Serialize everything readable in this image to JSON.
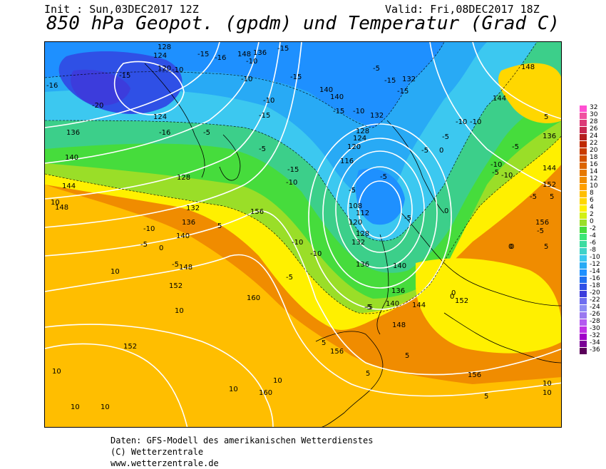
{
  "header": {
    "init": "Init : Sun,03DEC2017 12Z",
    "valid": "Valid: Fri,08DEC2017 18Z",
    "title": "850 hPa Geopot. (gpdm) und Temperatur (Grad C)"
  },
  "colors": {
    "t_m36": "#5a005a",
    "t_m34": "#7a0096",
    "t_m32": "#a000c8",
    "t_m30": "#c032e6",
    "t_m28": "#b45af0",
    "t_m26": "#9a78f0",
    "t_m24": "#8c8cf5",
    "t_m22": "#6e6ef0",
    "t_m20": "#3c3cdc",
    "t_m18": "#2f50e6",
    "t_m16": "#2070f0",
    "t_m14": "#1e90ff",
    "t_m12": "#28aaf5",
    "t_m10": "#3cc8f0",
    "t_m8": "#40d2c8",
    "t_m6": "#3cdca0",
    "t_m4": "#3ce678",
    "t_m2": "#46dc3c",
    "t_0": "#9ade28",
    "t_2": "#d2f014",
    "t_4": "#fff000",
    "t_6": "#ffd700",
    "t_8": "#ffbe00",
    "t_10": "#ffa000",
    "t_12": "#f08c00",
    "t_14": "#e67800",
    "t_16": "#dc6400",
    "t_18": "#d25000",
    "t_20": "#c83c00",
    "t_22": "#be2800",
    "t_24": "#b41e1e",
    "t_26": "#c82850",
    "t_28": "#dc3c78",
    "t_30": "#f050a0",
    "t_32": "#ff50d2"
  },
  "scale": [
    {
      "label": "32",
      "color": "#ff50d2"
    },
    {
      "label": "30",
      "color": "#f050a0"
    },
    {
      "label": "28",
      "color": "#dc3c78"
    },
    {
      "label": "26",
      "color": "#c82850"
    },
    {
      "label": "24",
      "color": "#b41e1e"
    },
    {
      "label": "22",
      "color": "#be2800"
    },
    {
      "label": "20",
      "color": "#c83c00"
    },
    {
      "label": "18",
      "color": "#d25000"
    },
    {
      "label": "16",
      "color": "#dc6400"
    },
    {
      "label": "14",
      "color": "#e67800"
    },
    {
      "label": "12",
      "color": "#f08c00"
    },
    {
      "label": "10",
      "color": "#ffa000"
    },
    {
      "label": "8",
      "color": "#ffbe00"
    },
    {
      "label": "6",
      "color": "#ffd700"
    },
    {
      "label": "4",
      "color": "#fff000"
    },
    {
      "label": "2",
      "color": "#d2f014"
    },
    {
      "label": "0",
      "color": "#9ade28"
    },
    {
      "label": "-2",
      "color": "#46dc3c"
    },
    {
      "label": "-4",
      "color": "#3ce678"
    },
    {
      "label": "-6",
      "color": "#3cdca0"
    },
    {
      "label": "-8",
      "color": "#40d2c8"
    },
    {
      "label": "-10",
      "color": "#3cc8f0"
    },
    {
      "label": "-12",
      "color": "#28aaf5"
    },
    {
      "label": "-14",
      "color": "#1e90ff"
    },
    {
      "label": "-16",
      "color": "#2070f0"
    },
    {
      "label": "-18",
      "color": "#2f50e6"
    },
    {
      "label": "-20",
      "color": "#3c3cdc"
    },
    {
      "label": "-22",
      "color": "#6e6ef0"
    },
    {
      "label": "-24",
      "color": "#8c8cf5"
    },
    {
      "label": "-26",
      "color": "#9a78f0"
    },
    {
      "label": "-28",
      "color": "#b45af0"
    },
    {
      "label": "-30",
      "color": "#c032e6"
    },
    {
      "label": "-32",
      "color": "#a000c8"
    },
    {
      "label": "-34",
      "color": "#7a0096"
    },
    {
      "label": "-36",
      "color": "#5a005a"
    }
  ],
  "geopotential_labels": [
    "128",
    "124",
    "120",
    "124",
    "136",
    "140",
    "144",
    "148",
    "128",
    "132",
    "136",
    "140",
    "148",
    "152",
    "156",
    "160",
    "152",
    "140",
    "136",
    "132",
    "128",
    "124",
    "120",
    "116",
    "112",
    "108",
    "120",
    "128",
    "132",
    "136",
    "140",
    "144",
    "148",
    "152",
    "156",
    "136",
    "140",
    "144",
    "148",
    "144",
    "152",
    "156",
    "136",
    "132",
    "140",
    "148",
    "156",
    "160"
  ],
  "temperature_labels": [
    "-15",
    "-16",
    "-10",
    "-20",
    "-16",
    "-15",
    "-16",
    "-15",
    "-10",
    "-5",
    "-10",
    "-15",
    "-10",
    "-15",
    "-15",
    "-5",
    "-10",
    "-15",
    "-15",
    "-10",
    "-15",
    "-5",
    "-10",
    "-5",
    "-5",
    "-10",
    "-5",
    "0",
    "-5",
    "-10",
    "-5",
    "-5",
    "-10",
    "-10",
    "-5",
    "0",
    "-5",
    "-10",
    "-5",
    "0",
    "-5",
    "-5",
    "0",
    "10",
    "10",
    "10",
    "10",
    "10",
    "10",
    "10",
    "10",
    "10",
    "10",
    "5",
    "5",
    "5",
    "5",
    "5",
    "0",
    "5",
    "5",
    "-5",
    "-10",
    "-5",
    "0",
    "5",
    "0",
    "-5"
  ],
  "footer": {
    "line1": "Daten: GFS-Modell des amerikanischen Wetterdienstes",
    "line2": "(C) Wetterzentrale",
    "line3": "www.wetterzentrale.de"
  }
}
